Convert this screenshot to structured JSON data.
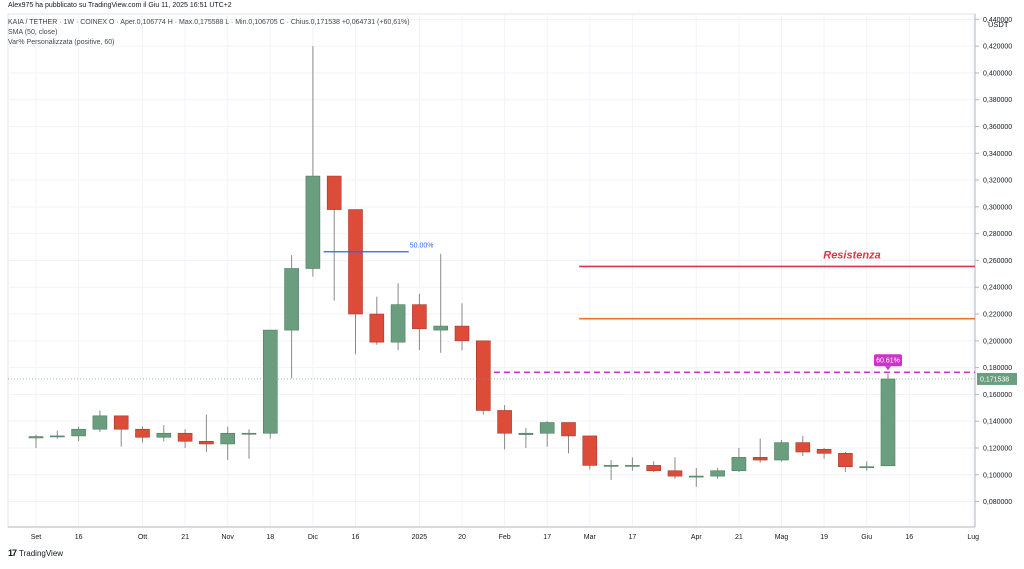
{
  "header": {
    "publisher_line": "Alex975 ha pubblicato su TradingView.com il Giu 11, 2025 16:51 UTC+2",
    "symbol_line": "KAIA / TETHER · 1W · COINEX  O · Aper.0,106774  H · Max.0,175588  L · Min.0,106705  C · Chius.0,171538  +0,064731 (+60,61%)",
    "sma_line": "SMA (50, close)",
    "indicator_line": "Var% Personalizzata (positive, 60)"
  },
  "watermark": {
    "logo": "17",
    "label": "TradingView"
  },
  "colors": {
    "up": "#6a9e7f",
    "down": "#dd4b39",
    "wick": "#8a8a8a",
    "grid": "#f0f3fa",
    "axis_text": "#131722",
    "resistance": "#d9374b",
    "support": "#e8762b",
    "dashed": "#cc33cc",
    "pct_line": "#2962ff",
    "price_label": "#6a9e7f"
  },
  "chart_data": {
    "type": "candlestick",
    "currency": "USDT",
    "ylim": [
      0.061,
      0.444
    ],
    "y_ticks": [
      0.08,
      0.1,
      0.12,
      0.14,
      0.16,
      0.18,
      0.2,
      0.22,
      0.24,
      0.26,
      0.28,
      0.3,
      0.32,
      0.34,
      0.36,
      0.38,
      0.4,
      0.42,
      0.44
    ],
    "y_tick_labels": [
      "0,080000",
      "0,100000",
      "0,120000",
      "0,140000",
      "0,160000",
      "0,180000",
      "0,200000",
      "0,220000",
      "0,240000",
      "0,260000",
      "0,280000",
      "0,300000",
      "0,320000",
      "0,340000",
      "0,360000",
      "0,380000",
      "0,400000",
      "0,420000",
      "0,440000"
    ],
    "x_ticks": [
      {
        "label": "Set",
        "at": 0
      },
      {
        "label": "16",
        "at": 2
      },
      {
        "label": "Ott",
        "at": 5
      },
      {
        "label": "21",
        "at": 7
      },
      {
        "label": "Nov",
        "at": 9
      },
      {
        "label": "18",
        "at": 11
      },
      {
        "label": "Dic",
        "at": 13
      },
      {
        "label": "16",
        "at": 15
      },
      {
        "label": "2025",
        "at": 18
      },
      {
        "label": "20",
        "at": 20
      },
      {
        "label": "Feb",
        "at": 22
      },
      {
        "label": "17",
        "at": 24
      },
      {
        "label": "Mar",
        "at": 26
      },
      {
        "label": "17",
        "at": 28
      },
      {
        "label": "Apr",
        "at": 31
      },
      {
        "label": "21",
        "at": 33
      },
      {
        "label": "Mag",
        "at": 35
      },
      {
        "label": "19",
        "at": 37
      },
      {
        "label": "Giu",
        "at": 39
      },
      {
        "label": "16",
        "at": 41
      },
      {
        "label": "Lug",
        "at": 44
      }
    ],
    "candles": [
      {
        "o": 0.1275,
        "h": 0.13,
        "l": 0.12,
        "c": 0.1285
      },
      {
        "o": 0.1285,
        "h": 0.133,
        "l": 0.127,
        "c": 0.129
      },
      {
        "o": 0.129,
        "h": 0.136,
        "l": 0.125,
        "c": 0.134
      },
      {
        "o": 0.134,
        "h": 0.148,
        "l": 0.132,
        "c": 0.144
      },
      {
        "o": 0.144,
        "h": 0.144,
        "l": 0.121,
        "c": 0.134
      },
      {
        "o": 0.134,
        "h": 0.136,
        "l": 0.124,
        "c": 0.128
      },
      {
        "o": 0.128,
        "h": 0.137,
        "l": 0.125,
        "c": 0.131
      },
      {
        "o": 0.131,
        "h": 0.134,
        "l": 0.12,
        "c": 0.125
      },
      {
        "o": 0.125,
        "h": 0.145,
        "l": 0.117,
        "c": 0.123
      },
      {
        "o": 0.123,
        "h": 0.136,
        "l": 0.111,
        "c": 0.131
      },
      {
        "o": 0.131,
        "h": 0.134,
        "l": 0.112,
        "c": 0.131
      },
      {
        "o": 0.131,
        "h": 0.208,
        "l": 0.127,
        "c": 0.208
      },
      {
        "o": 0.208,
        "h": 0.264,
        "l": 0.172,
        "c": 0.254
      },
      {
        "o": 0.254,
        "h": 0.42,
        "l": 0.248,
        "c": 0.323
      },
      {
        "o": 0.323,
        "h": 0.323,
        "l": 0.23,
        "c": 0.298
      },
      {
        "o": 0.298,
        "h": 0.298,
        "l": 0.19,
        "c": 0.22
      },
      {
        "o": 0.22,
        "h": 0.233,
        "l": 0.197,
        "c": 0.199
      },
      {
        "o": 0.199,
        "h": 0.243,
        "l": 0.193,
        "c": 0.227
      },
      {
        "o": 0.227,
        "h": 0.235,
        "l": 0.193,
        "c": 0.209
      },
      {
        "o": 0.208,
        "h": 0.265,
        "l": 0.191,
        "c": 0.211
      },
      {
        "o": 0.211,
        "h": 0.228,
        "l": 0.193,
        "c": 0.2
      },
      {
        "o": 0.2,
        "h": 0.2,
        "l": 0.145,
        "c": 0.148
      },
      {
        "o": 0.148,
        "h": 0.152,
        "l": 0.119,
        "c": 0.131
      },
      {
        "o": 0.13,
        "h": 0.135,
        "l": 0.12,
        "c": 0.131
      },
      {
        "o": 0.131,
        "h": 0.14,
        "l": 0.121,
        "c": 0.139
      },
      {
        "o": 0.139,
        "h": 0.139,
        "l": 0.116,
        "c": 0.129
      },
      {
        "o": 0.129,
        "h": 0.129,
        "l": 0.104,
        "c": 0.107
      },
      {
        "o": 0.107,
        "h": 0.111,
        "l": 0.096,
        "c": 0.107
      },
      {
        "o": 0.107,
        "h": 0.113,
        "l": 0.103,
        "c": 0.107
      },
      {
        "o": 0.107,
        "h": 0.11,
        "l": 0.102,
        "c": 0.103
      },
      {
        "o": 0.103,
        "h": 0.113,
        "l": 0.097,
        "c": 0.099
      },
      {
        "o": 0.099,
        "h": 0.105,
        "l": 0.091,
        "c": 0.099
      },
      {
        "o": 0.099,
        "h": 0.105,
        "l": 0.097,
        "c": 0.103
      },
      {
        "o": 0.103,
        "h": 0.12,
        "l": 0.102,
        "c": 0.113
      },
      {
        "o": 0.113,
        "h": 0.127,
        "l": 0.109,
        "c": 0.111
      },
      {
        "o": 0.111,
        "h": 0.126,
        "l": 0.11,
        "c": 0.124
      },
      {
        "o": 0.124,
        "h": 0.129,
        "l": 0.114,
        "c": 0.117
      },
      {
        "o": 0.119,
        "h": 0.12,
        "l": 0.112,
        "c": 0.116
      },
      {
        "o": 0.116,
        "h": 0.117,
        "l": 0.102,
        "c": 0.106
      },
      {
        "o": 0.106,
        "h": 0.11,
        "l": 0.103,
        "c": 0.106
      },
      {
        "o": 0.1067,
        "h": 0.1756,
        "l": 0.1067,
        "c": 0.1715
      }
    ],
    "annotations": {
      "resistance_label": "Resistenza",
      "resistance_level": 0.2555,
      "resistance_from_idx": 25.5,
      "support_level": 0.2165,
      "support_from_idx": 25.5,
      "dashed_level": 0.1765,
      "dashed_from_idx": 21.5,
      "pct_label": "50.00%",
      "pct_level": 0.2665,
      "pct_from_idx": 13.5,
      "pct_to_idx": 17.5,
      "badge_label": "60.61%",
      "badge_level": 0.1855,
      "badge_idx": 40,
      "price_label": "0,171538",
      "price_level": 0.171538
    }
  }
}
